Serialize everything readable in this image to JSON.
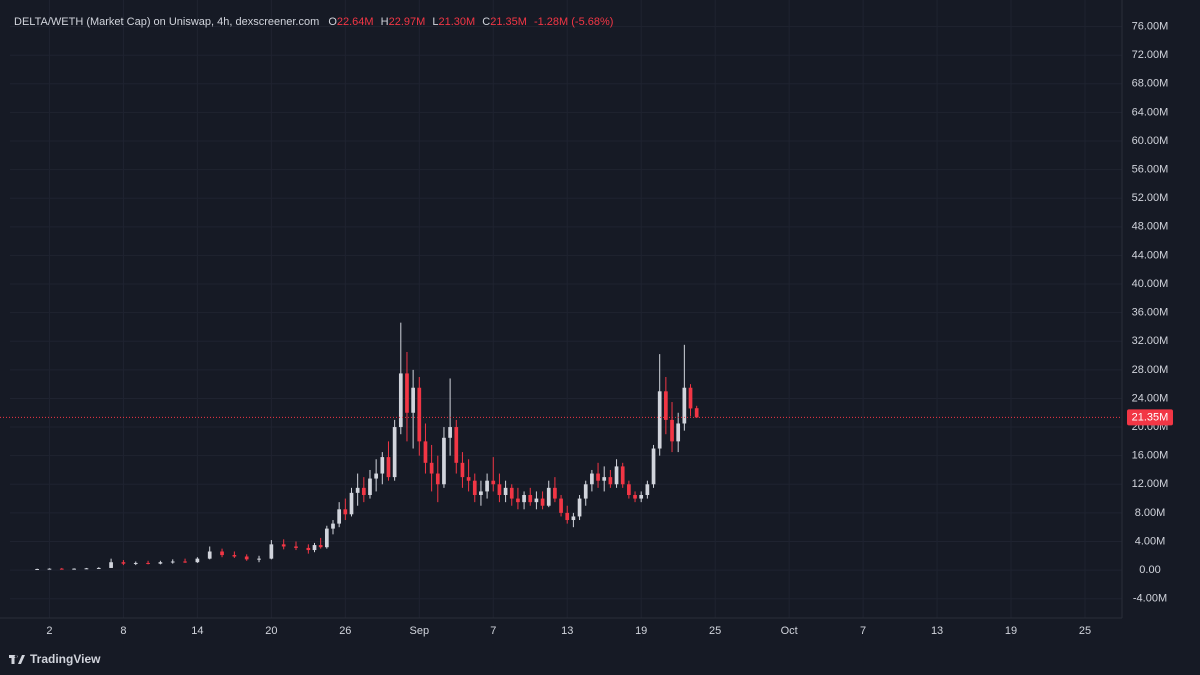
{
  "chart_data": {
    "type": "candlestick",
    "title": "DELTA/WETH (Market Cap) on Uniswap, 4h, dexscreener.com",
    "legend": [
      {
        "key": "O",
        "value": "22.64M"
      },
      {
        "key": "H",
        "value": "22.97M"
      },
      {
        "key": "L",
        "value": "21.30M"
      },
      {
        "key": "C",
        "value": "21.35M"
      }
    ],
    "change": "-1.28M (-5.68%)",
    "watermark": "TradingView",
    "up_color": "#d1d4dc",
    "down_color": "#f23645",
    "grid": true,
    "x": [
      0,
      1,
      2,
      3,
      4,
      5,
      6,
      7,
      8,
      9,
      10,
      11,
      12,
      13,
      14,
      15,
      16,
      17,
      18,
      19,
      20,
      21,
      22,
      22.5,
      23,
      23.5,
      24,
      24.5,
      25,
      25.5,
      26,
      26.5,
      27,
      27.5,
      28,
      28.5,
      29,
      29.5,
      30,
      30.5,
      31,
      31.5,
      32,
      32.5,
      33,
      33.5,
      34,
      34.5,
      35,
      35.5,
      36,
      36.5,
      37,
      37.5,
      38,
      38.5,
      39,
      39.5,
      40,
      40.5,
      41,
      41.5,
      42,
      42.5,
      43,
      43.5,
      44,
      44.5,
      45,
      45.5,
      46,
      46.5,
      47,
      47.5,
      48,
      48.5,
      49,
      49.5,
      50,
      50.5,
      51,
      51.5,
      52,
      52.5,
      53,
      53.5
    ],
    "open": [
      0.1,
      0.15,
      0.2,
      0.15,
      0.2,
      0.25,
      0.3,
      1.1,
      0.9,
      1.0,
      0.9,
      1.1,
      1.2,
      1.1,
      1.6,
      2.6,
      2.1,
      1.9,
      1.5,
      1.6,
      3.6,
      3.3,
      3.1,
      2.8,
      3.5,
      3.2,
      5.8,
      6.5,
      8.5,
      7.8,
      10.8,
      11.5,
      10.5,
      12.8,
      13.5,
      15.8,
      13.0,
      20.0,
      27.5,
      22.0,
      25.5,
      18.0,
      15.0,
      13.5,
      12.0,
      18.5,
      20.0,
      15.0,
      13.0,
      12.5,
      10.5,
      11.0,
      12.5,
      12.0,
      10.5,
      11.5,
      10.0,
      9.5,
      10.5,
      9.5,
      10.0,
      9.0,
      11.5,
      10.0,
      8.0,
      7.0,
      7.5,
      10.0,
      12.0,
      13.5,
      12.5,
      13.0,
      12.0,
      14.5,
      12.0,
      10.5,
      10.0,
      10.5,
      12.0,
      17.0,
      25.0,
      21.0,
      18.0,
      20.5,
      25.5,
      22.64
    ],
    "high": [
      0.2,
      0.25,
      0.3,
      0.25,
      0.3,
      0.4,
      1.6,
      1.4,
      1.2,
      1.3,
      1.3,
      1.5,
      1.6,
      1.8,
      3.3,
      3.0,
      2.6,
      2.2,
      2.0,
      4.2,
      4.3,
      4.0,
      3.6,
      3.8,
      4.5,
      6.2,
      7.0,
      9.5,
      10.0,
      11.5,
      13.5,
      13.0,
      14.0,
      15.5,
      16.5,
      18.0,
      21.0,
      34.6,
      30.5,
      28.0,
      27.0,
      20.5,
      17.5,
      16.0,
      20.0,
      26.8,
      21.0,
      16.5,
      15.5,
      13.5,
      12.5,
      13.5,
      15.8,
      13.5,
      12.5,
      12.0,
      11.5,
      11.0,
      11.5,
      11.0,
      11.0,
      12.5,
      13.0,
      10.5,
      9.0,
      8.0,
      10.5,
      12.5,
      14.0,
      15.0,
      14.5,
      14.0,
      15.5,
      15.0,
      12.5,
      11.0,
      11.0,
      12.5,
      17.5,
      30.2,
      27.0,
      23.5,
      22.0,
      31.5,
      26.0,
      22.97
    ],
    "low": [
      0.05,
      0.1,
      0.1,
      0.1,
      0.15,
      0.2,
      0.3,
      0.7,
      0.7,
      0.8,
      0.8,
      0.9,
      1.0,
      1.0,
      1.5,
      1.8,
      1.7,
      1.3,
      1.1,
      1.5,
      2.9,
      2.8,
      2.3,
      2.5,
      3.0,
      3.0,
      5.0,
      6.0,
      7.0,
      7.5,
      9.0,
      9.5,
      10.0,
      11.0,
      12.0,
      12.5,
      12.5,
      19.0,
      18.0,
      17.0,
      16.0,
      13.5,
      11.0,
      9.5,
      11.5,
      16.0,
      13.5,
      11.5,
      11.0,
      9.5,
      9.0,
      10.0,
      11.0,
      9.5,
      9.5,
      9.0,
      8.5,
      8.5,
      9.0,
      8.5,
      8.5,
      8.8,
      9.5,
      7.5,
      6.5,
      6.0,
      7.0,
      9.0,
      11.0,
      11.5,
      11.0,
      11.5,
      11.5,
      11.5,
      10.0,
      9.5,
      9.5,
      10.0,
      11.5,
      16.0,
      19.0,
      16.5,
      16.5,
      19.5,
      21.5,
      21.3
    ],
    "close": [
      0.15,
      0.2,
      0.15,
      0.2,
      0.25,
      0.3,
      1.1,
      0.9,
      1.0,
      0.9,
      1.1,
      1.2,
      1.1,
      1.6,
      2.6,
      2.1,
      1.9,
      1.5,
      1.6,
      3.6,
      3.3,
      3.1,
      2.8,
      3.5,
      3.2,
      5.8,
      6.5,
      8.5,
      7.8,
      10.8,
      11.5,
      10.5,
      12.8,
      13.5,
      15.8,
      13.0,
      20.0,
      27.5,
      22.0,
      25.5,
      18.0,
      15.0,
      13.5,
      12.0,
      18.5,
      20.0,
      15.0,
      13.0,
      12.5,
      10.5,
      11.0,
      12.5,
      12.0,
      10.5,
      11.5,
      10.0,
      9.5,
      10.5,
      9.5,
      10.0,
      9.0,
      11.5,
      10.0,
      8.0,
      7.0,
      7.5,
      10.0,
      12.0,
      13.5,
      12.5,
      13.0,
      12.0,
      14.5,
      12.0,
      10.5,
      10.0,
      10.5,
      12.0,
      17.0,
      25.0,
      21.0,
      18.0,
      20.5,
      25.5,
      22.6,
      21.35
    ],
    "xlim": [
      -2.2,
      88
    ],
    "xticks": [
      {
        "value": 1,
        "label": "2"
      },
      {
        "value": 7,
        "label": "8"
      },
      {
        "value": 13,
        "label": "14"
      },
      {
        "value": 19,
        "label": "20"
      },
      {
        "value": 25,
        "label": "26"
      },
      {
        "value": 31,
        "label": "Sep"
      },
      {
        "value": 37,
        "label": "7"
      },
      {
        "value": 43,
        "label": "13"
      },
      {
        "value": 49,
        "label": "19"
      },
      {
        "value": 55,
        "label": "25"
      },
      {
        "value": 61,
        "label": "Oct"
      },
      {
        "value": 67,
        "label": "7"
      },
      {
        "value": 73,
        "label": "13"
      },
      {
        "value": 79,
        "label": "19"
      },
      {
        "value": 85,
        "label": "25"
      }
    ],
    "ylim": [
      -6.7,
      78.6
    ],
    "yticks": [
      {
        "value": -4,
        "label": "-4.00M"
      },
      {
        "value": 0,
        "label": "0.00"
      },
      {
        "value": 4,
        "label": "4.00M"
      },
      {
        "value": 8,
        "label": "8.00M"
      },
      {
        "value": 12,
        "label": "12.00M"
      },
      {
        "value": 16,
        "label": "16.00M"
      },
      {
        "value": 20,
        "label": "20.00M"
      },
      {
        "value": 24,
        "label": "24.00M"
      },
      {
        "value": 28,
        "label": "28.00M"
      },
      {
        "value": 32,
        "label": "32.00M"
      },
      {
        "value": 36,
        "label": "36.00M"
      },
      {
        "value": 40,
        "label": "40.00M"
      },
      {
        "value": 44,
        "label": "44.00M"
      },
      {
        "value": 48,
        "label": "48.00M"
      },
      {
        "value": 52,
        "label": "52.00M"
      },
      {
        "value": 56,
        "label": "56.00M"
      },
      {
        "value": 60,
        "label": "60.00M"
      },
      {
        "value": 64,
        "label": "64.00M"
      },
      {
        "value": 68,
        "label": "68.00M"
      },
      {
        "value": 72,
        "label": "72.00M"
      },
      {
        "value": 76,
        "label": "76.00M"
      }
    ],
    "last_value": 21.35,
    "last_label": "21.35M"
  }
}
